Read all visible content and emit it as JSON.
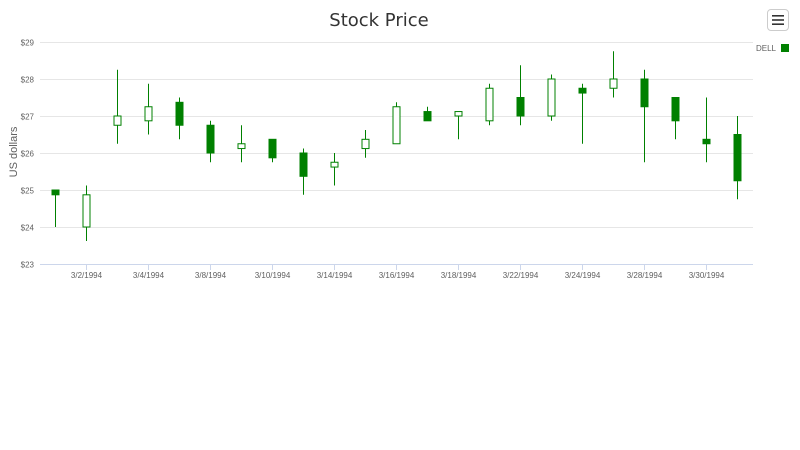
{
  "chart_data": {
    "type": "candlestick",
    "title": "Stock Price",
    "ylabel": "US dollars",
    "xlabel": "",
    "ylim": [
      23,
      29
    ],
    "yticks": [
      "$23",
      "$24",
      "$25",
      "$26",
      "$27",
      "$28",
      "$29"
    ],
    "ytick_values": [
      23,
      24,
      25,
      26,
      27,
      28,
      29
    ],
    "grid": true,
    "legend_position": "top-right",
    "series": [
      {
        "name": "DELL",
        "color": "#008000",
        "points": [
          {
            "x": "3/1/1994",
            "open": 25.0,
            "high": 25.0,
            "low": 24.0,
            "close": 24.87
          },
          {
            "x": "3/2/1994",
            "open": 24.0,
            "high": 25.12,
            "low": 23.62,
            "close": 24.87
          },
          {
            "x": "3/3/1994",
            "open": 26.75,
            "high": 28.25,
            "low": 26.25,
            "close": 27.0
          },
          {
            "x": "3/4/1994",
            "open": 26.87,
            "high": 27.87,
            "low": 26.5,
            "close": 27.25
          },
          {
            "x": "3/7/1994",
            "open": 27.37,
            "high": 27.5,
            "low": 26.37,
            "close": 26.75
          },
          {
            "x": "3/8/1994",
            "open": 26.75,
            "high": 26.87,
            "low": 25.75,
            "close": 26.0
          },
          {
            "x": "3/9/1994",
            "open": 26.12,
            "high": 26.75,
            "low": 25.75,
            "close": 26.25
          },
          {
            "x": "3/10/1994",
            "open": 26.37,
            "high": 26.37,
            "low": 25.75,
            "close": 25.87
          },
          {
            "x": "3/11/1994",
            "open": 26.0,
            "high": 26.12,
            "low": 24.87,
            "close": 25.37
          },
          {
            "x": "3/14/1994",
            "open": 25.62,
            "high": 26.0,
            "low": 25.12,
            "close": 25.75
          },
          {
            "x": "3/15/1994",
            "open": 26.12,
            "high": 26.62,
            "low": 25.87,
            "close": 26.37
          },
          {
            "x": "3/16/1994",
            "open": 26.25,
            "high": 27.37,
            "low": 26.25,
            "close": 27.25
          },
          {
            "x": "3/17/1994",
            "open": 27.12,
            "high": 27.25,
            "low": 26.87,
            "close": 26.87
          },
          {
            "x": "3/18/1994",
            "open": 27.0,
            "high": 27.12,
            "low": 26.37,
            "close": 27.12
          },
          {
            "x": "3/21/1994",
            "open": 26.87,
            "high": 27.87,
            "low": 26.75,
            "close": 27.75
          },
          {
            "x": "3/22/1994",
            "open": 27.5,
            "high": 28.37,
            "low": 26.75,
            "close": 27.0
          },
          {
            "x": "3/23/1994",
            "open": 27.0,
            "high": 28.12,
            "low": 26.87,
            "close": 28.0
          },
          {
            "x": "3/24/1994",
            "open": 27.75,
            "high": 27.87,
            "low": 26.25,
            "close": 27.62
          },
          {
            "x": "3/25/1994",
            "open": 27.75,
            "high": 28.75,
            "low": 27.5,
            "close": 28.0
          },
          {
            "x": "3/28/1994",
            "open": 28.0,
            "high": 28.25,
            "low": 25.75,
            "close": 27.25
          },
          {
            "x": "3/29/1994",
            "open": 27.5,
            "high": 27.5,
            "low": 26.37,
            "close": 26.87
          },
          {
            "x": "3/30/1994",
            "open": 26.37,
            "high": 27.5,
            "low": 25.75,
            "close": 26.25
          },
          {
            "x": "3/31/1994",
            "open": 26.5,
            "high": 27.0,
            "low": 24.75,
            "close": 25.25
          }
        ]
      }
    ],
    "x_tick_labels": [
      "3/2/1994",
      "3/4/1994",
      "3/8/1994",
      "3/10/1994",
      "3/14/1994",
      "3/16/1994",
      "3/18/1994",
      "3/22/1994",
      "3/24/1994",
      "3/28/1994",
      "3/30/1994"
    ],
    "x_tick_label_points": [
      1,
      3,
      5,
      7,
      9,
      11,
      13,
      15,
      17,
      19,
      21
    ]
  },
  "toolbar": {
    "menu_icon": "hamburger-menu-icon"
  }
}
